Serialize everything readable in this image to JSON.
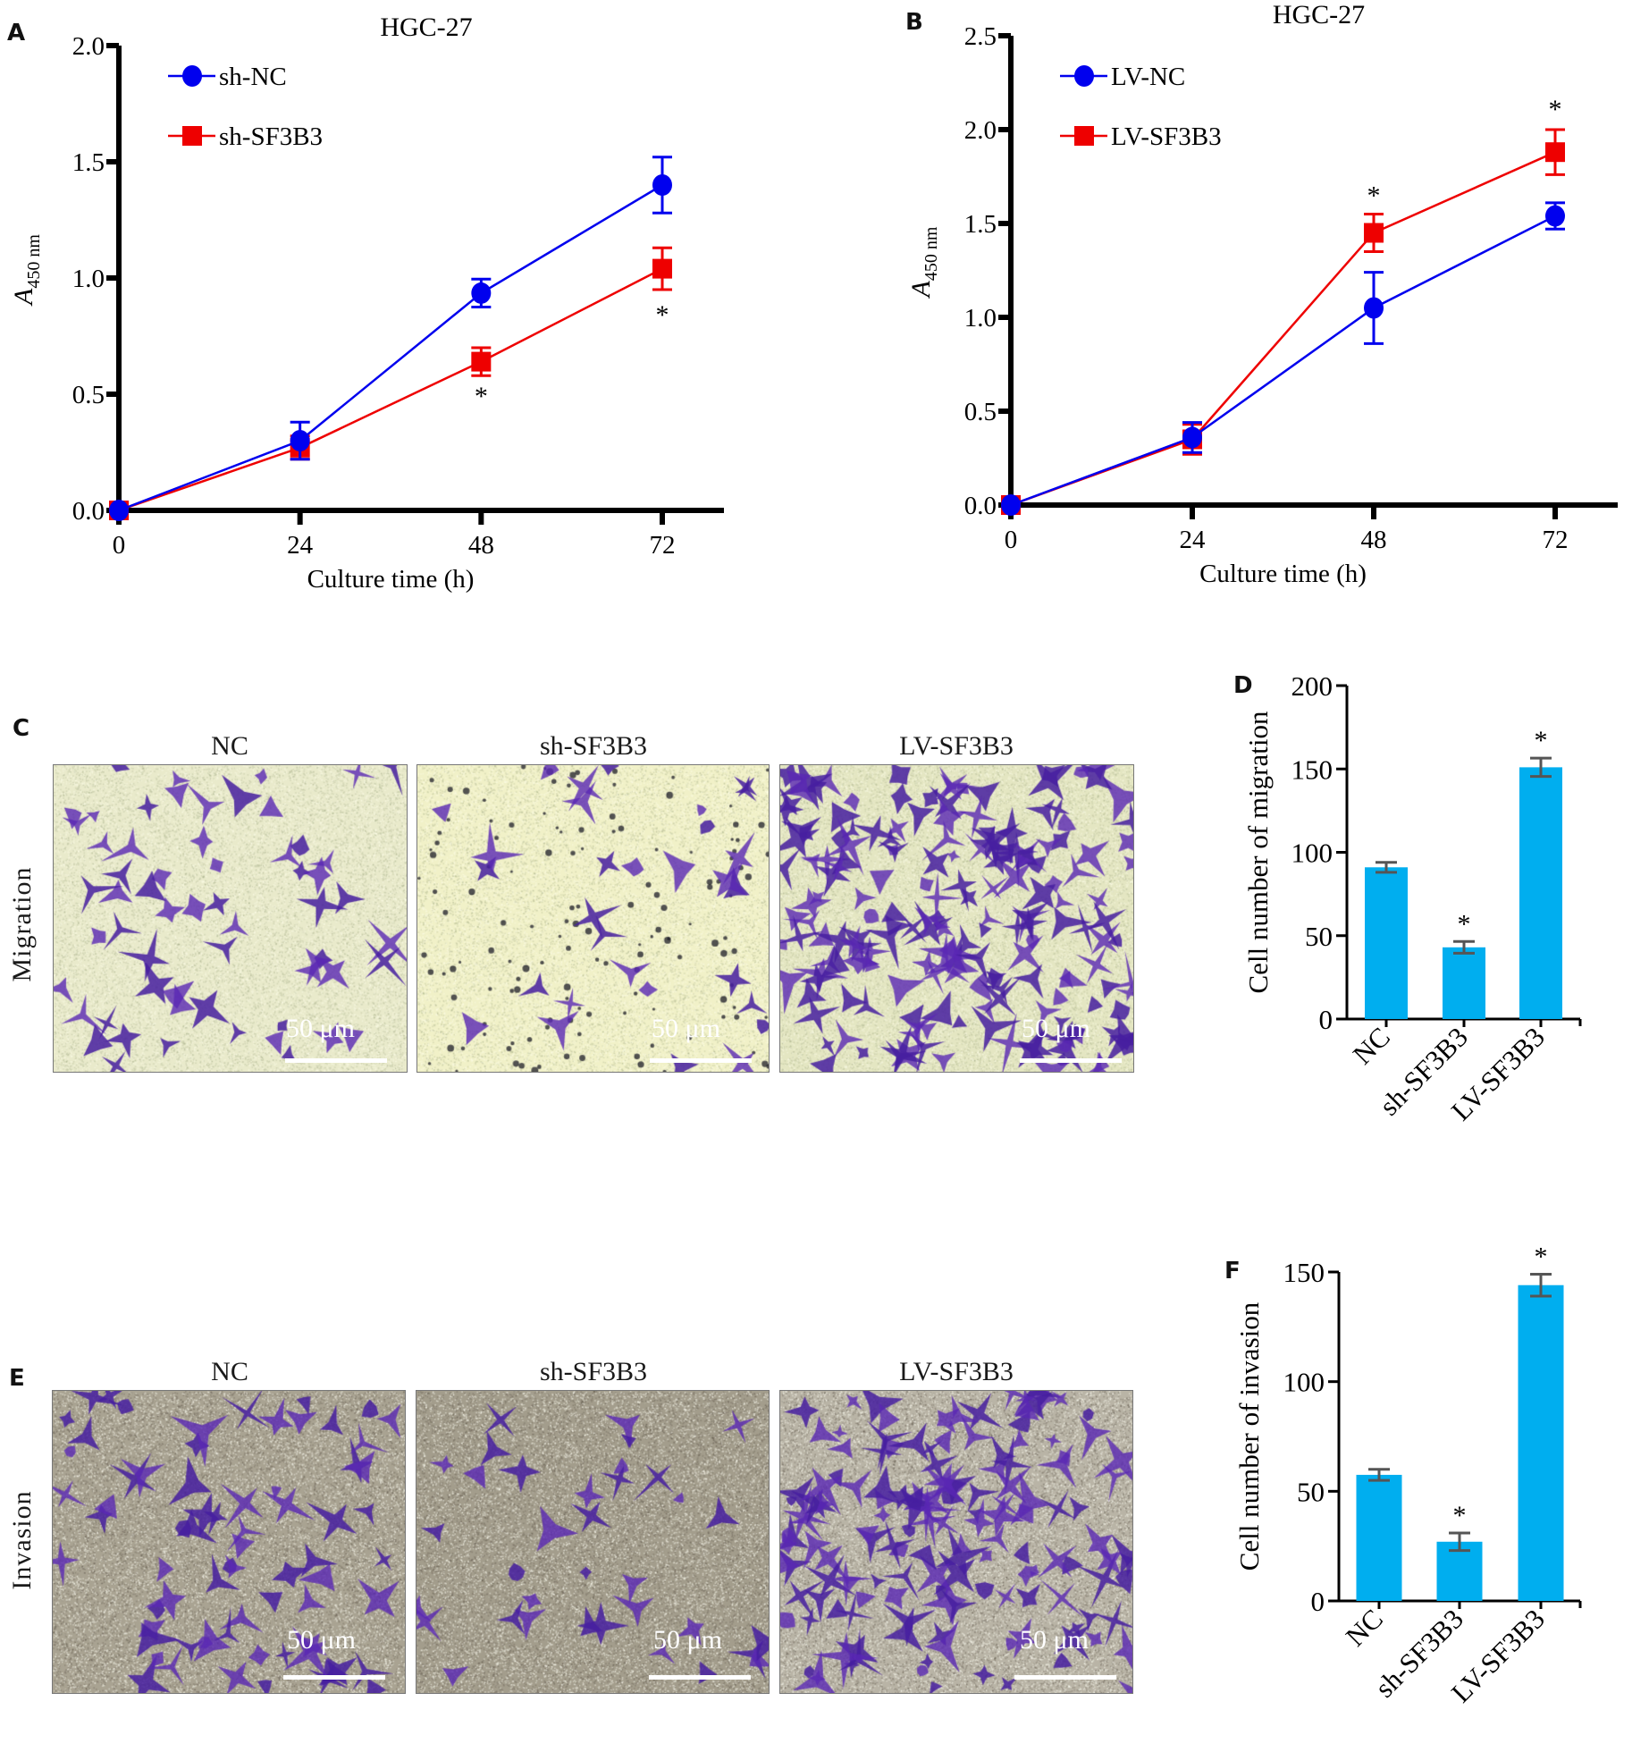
{
  "panels": {
    "A": {
      "label": "A"
    },
    "B": {
      "label": "B"
    },
    "C": {
      "label": "C",
      "row_label": "Migration",
      "columns": [
        "NC",
        "sh-SF3B3",
        "LV-SF3B3"
      ],
      "scale_text": "50 μm"
    },
    "D": {
      "label": "D"
    },
    "E": {
      "label": "E",
      "row_label": "Invasion",
      "columns": [
        "NC",
        "sh-SF3B3",
        "LV-SF3B3"
      ],
      "scale_text": "50 μm"
    },
    "F": {
      "label": "F"
    }
  },
  "colors": {
    "blue": "#0000ee",
    "red": "#ee0000",
    "bar": "#00aeef",
    "errbar": "#555555",
    "axis": "#000000"
  },
  "chart_data": [
    {
      "id": "A",
      "type": "line",
      "title": "HGC-27",
      "xlabel": "Culture time (h)",
      "ylabel_main": "A",
      "ylabel_sub": "450 nm",
      "x": [
        0,
        24,
        48,
        72
      ],
      "xticks": [
        "0",
        "24",
        "48",
        "72"
      ],
      "ylim": [
        0,
        2.0
      ],
      "yticks": [
        "0.0",
        "0.5",
        "1.0",
        "1.5",
        "2.0"
      ],
      "legend_position": "top-left",
      "series": [
        {
          "name": "sh-NC",
          "marker": "circle",
          "color": "#0000ee",
          "values": [
            0,
            0.3,
            0.935,
            1.4
          ],
          "errors": [
            0,
            0.08,
            0.06,
            0.12
          ]
        },
        {
          "name": "sh-SF3B3",
          "marker": "square",
          "color": "#ee0000",
          "values": [
            0,
            0.27,
            0.64,
            1.04
          ],
          "errors": [
            0,
            0.05,
            0.06,
            0.09
          ]
        }
      ],
      "annotations": [
        {
          "text": "*",
          "x": 48,
          "y": 0.5
        },
        {
          "text": "*",
          "x": 72,
          "y": 0.85
        }
      ]
    },
    {
      "id": "B",
      "type": "line",
      "title": "HGC-27",
      "xlabel": "Culture time (h)",
      "ylabel_main": "A",
      "ylabel_sub": "450 nm",
      "x": [
        0,
        24,
        48,
        72
      ],
      "xticks": [
        "0",
        "24",
        "48",
        "72"
      ],
      "ylim": [
        0,
        2.5
      ],
      "yticks": [
        "0.0",
        "0.5",
        "1.0",
        "1.5",
        "2.0",
        "2.5"
      ],
      "legend_position": "top-left",
      "series": [
        {
          "name": "LV-NC",
          "marker": "circle",
          "color": "#0000ee",
          "values": [
            0,
            0.36,
            1.05,
            1.54
          ],
          "errors": [
            0,
            0.08,
            0.19,
            0.07
          ]
        },
        {
          "name": "LV-SF3B3",
          "marker": "square",
          "color": "#ee0000",
          "values": [
            0,
            0.35,
            1.45,
            1.88
          ],
          "errors": [
            0,
            0.08,
            0.1,
            0.12
          ]
        }
      ],
      "annotations": [
        {
          "text": "*",
          "x": 48,
          "y": 1.66
        },
        {
          "text": "*",
          "x": 72,
          "y": 2.12
        }
      ]
    },
    {
      "id": "D",
      "type": "bar",
      "title": "",
      "xlabel": "",
      "ylabel": "Cell number of migration",
      "categories": [
        "NC",
        "sh-SF3B3",
        "LV-SF3B3"
      ],
      "values": [
        91,
        43,
        151
      ],
      "errors": [
        3,
        3.5,
        5.5
      ],
      "significance": [
        "",
        "*",
        "*"
      ],
      "ylim": [
        0,
        200
      ],
      "yticks": [
        "0",
        "50",
        "100",
        "150",
        "200"
      ]
    },
    {
      "id": "F",
      "type": "bar",
      "title": "",
      "xlabel": "",
      "ylabel": "Cell number of invasion",
      "categories": [
        "NC",
        "sh-SF3B3",
        "LV-SF3B3"
      ],
      "values": [
        57.5,
        27,
        144
      ],
      "errors": [
        2.5,
        4,
        5
      ],
      "significance": [
        "",
        "*",
        "*"
      ],
      "ylim": [
        0,
        150
      ],
      "yticks": [
        "0",
        "50",
        "100",
        "150"
      ]
    }
  ]
}
